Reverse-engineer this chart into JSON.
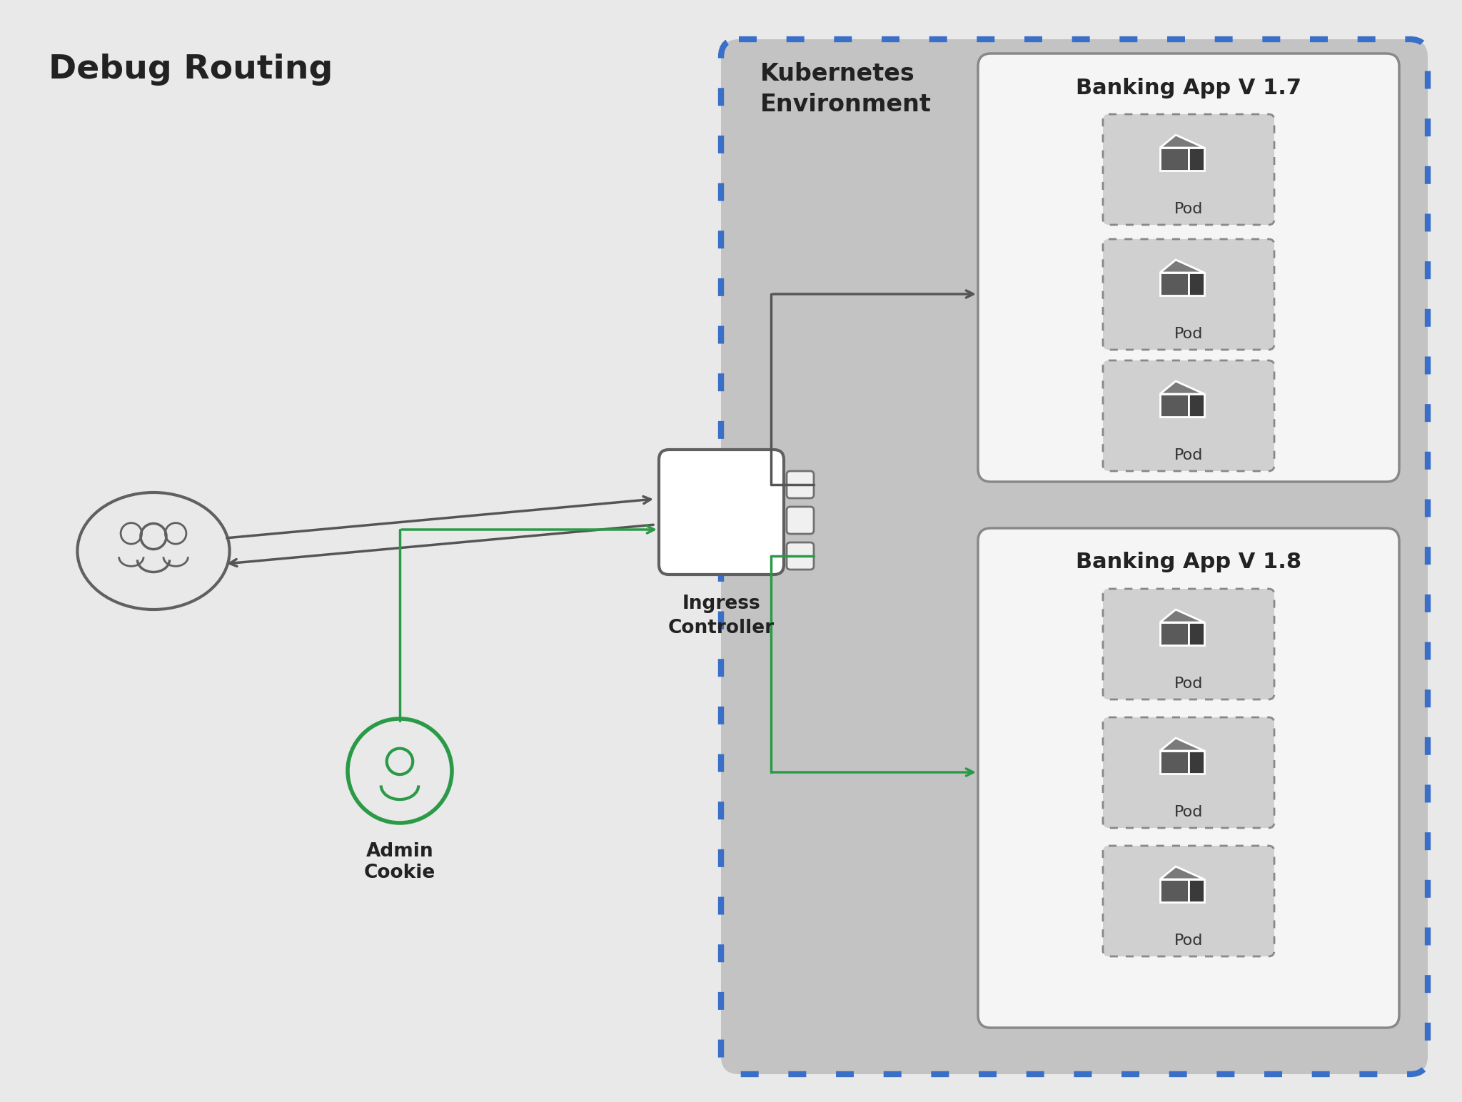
{
  "title": "Debug Routing",
  "background_color": "#e9e9e9",
  "k8s_env_label": "Kubernetes\nEnvironment",
  "ingress_label": "Ingress\nController",
  "admin_label": "Admin\nCookie",
  "banking_v17_label": "Banking App V 1.7",
  "banking_v18_label": "Banking App V 1.8",
  "pod_label": "Pod",
  "green_color": "#2b9a47",
  "gray_color": "#555555",
  "blue_dot_color": "#3a6fc9",
  "k8s_bg_color": "#c0c0c0",
  "banking_box_color": "#f8f8f8",
  "pod_box_color": "#cccccc",
  "ingress_box_color": "#ffffff",
  "users_oval_color": "#555555",
  "admin_circle_color": "#2b9a47"
}
